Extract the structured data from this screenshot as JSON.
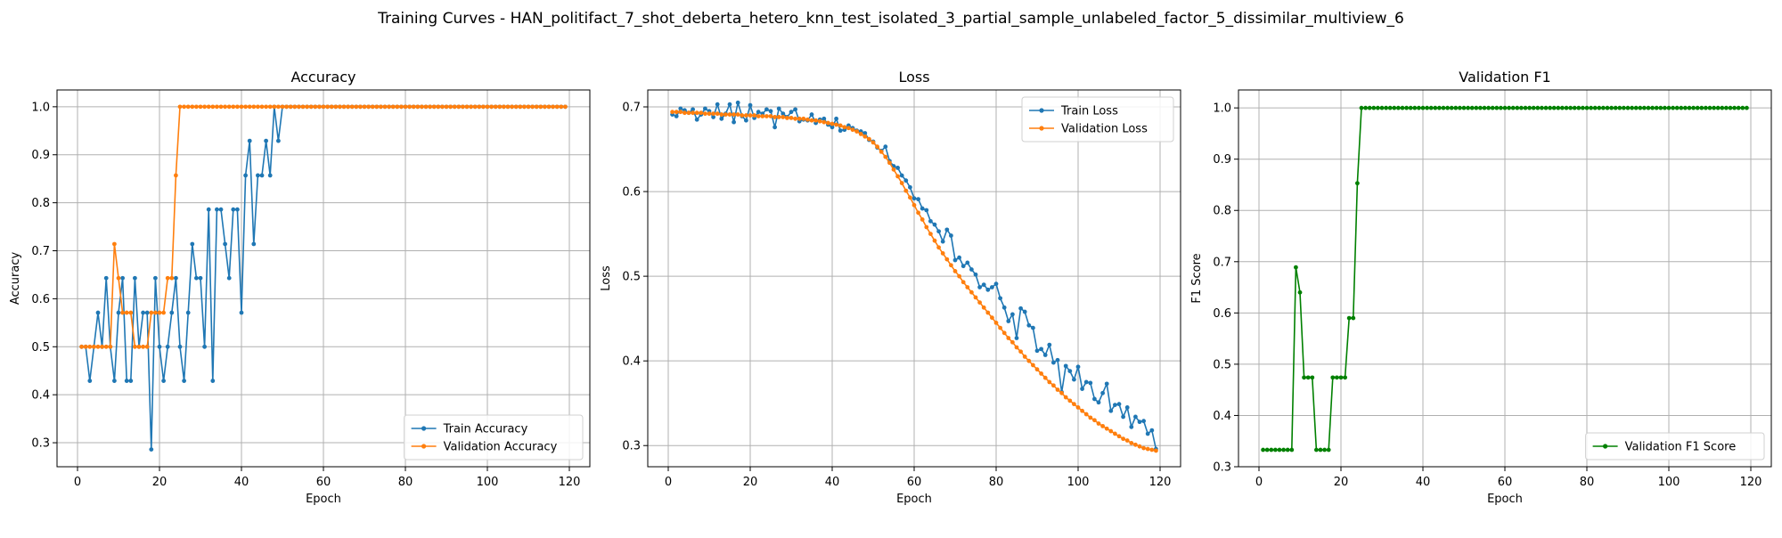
{
  "figure": {
    "title": "Training Curves - HAN_politifact_7_shot_deberta_hetero_knn_test_isolated_3_partial_sample_unlabeled_factor_5_dissimilar_multiview_6"
  },
  "colors": {
    "train": "#1f77b4",
    "validation": "#ff7f0e",
    "f1": "#008000"
  },
  "chart_data": [
    {
      "type": "line",
      "title": "Accuracy",
      "xlabel": "Epoch",
      "ylabel": "Accuracy",
      "xlim": [
        -5,
        125
      ],
      "ylim": [
        0.25,
        1.035
      ],
      "xticks": [
        "0",
        "20",
        "40",
        "60",
        "80",
        "100",
        "120"
      ],
      "yticks": [
        "0.3",
        "0.4",
        "0.5",
        "0.6",
        "0.7",
        "0.8",
        "0.9",
        "1.0"
      ],
      "grid": true,
      "legend": "lower-right",
      "series": [
        {
          "name": "Train Accuracy",
          "color": "#1f77b4",
          "values": [
            0.5,
            0.5,
            0.429,
            0.5,
            0.571,
            0.5,
            0.643,
            0.5,
            0.429,
            0.571,
            0.643,
            0.429,
            0.429,
            0.643,
            0.5,
            0.571,
            0.571,
            0.286,
            0.643,
            0.5,
            0.429,
            0.5,
            0.571,
            0.643,
            0.5,
            0.429,
            0.571,
            0.714,
            0.643,
            0.643,
            0.5,
            0.786,
            0.429,
            0.786,
            0.786,
            0.714,
            0.643,
            0.786,
            0.786,
            0.571,
            0.857,
            0.929,
            0.714,
            0.857,
            0.857,
            0.929,
            0.857,
            1.0,
            0.929,
            1.0,
            1.0,
            1.0,
            1.0,
            1.0,
            1.0,
            1.0,
            1.0,
            1.0,
            1.0,
            1.0,
            1.0,
            1.0,
            1.0,
            1.0,
            1.0,
            1.0,
            1.0,
            1.0,
            1.0,
            1.0,
            1.0,
            1.0,
            1.0,
            1.0,
            1.0,
            1.0,
            1.0,
            1.0,
            1.0,
            1.0,
            1.0,
            1.0,
            1.0,
            1.0,
            1.0,
            1.0,
            1.0,
            1.0,
            1.0,
            1.0,
            1.0,
            1.0,
            1.0,
            1.0,
            1.0,
            1.0,
            1.0,
            1.0,
            1.0,
            1.0,
            1.0,
            1.0,
            1.0,
            1.0,
            1.0,
            1.0,
            1.0,
            1.0,
            1.0,
            1.0,
            1.0,
            1.0,
            1.0,
            1.0,
            1.0,
            1.0,
            1.0,
            1.0,
            1.0
          ]
        },
        {
          "name": "Validation Accuracy",
          "color": "#ff7f0e",
          "values": [
            0.5,
            0.5,
            0.5,
            0.5,
            0.5,
            0.5,
            0.5,
            0.5,
            0.714,
            0.643,
            0.571,
            0.571,
            0.571,
            0.5,
            0.5,
            0.5,
            0.5,
            0.571,
            0.571,
            0.571,
            0.571,
            0.643,
            0.643,
            0.857,
            1.0,
            1.0,
            1.0,
            1.0,
            1.0,
            1.0,
            1.0,
            1.0,
            1.0,
            1.0,
            1.0,
            1.0,
            1.0,
            1.0,
            1.0,
            1.0,
            1.0,
            1.0,
            1.0,
            1.0,
            1.0,
            1.0,
            1.0,
            1.0,
            1.0,
            1.0,
            1.0,
            1.0,
            1.0,
            1.0,
            1.0,
            1.0,
            1.0,
            1.0,
            1.0,
            1.0,
            1.0,
            1.0,
            1.0,
            1.0,
            1.0,
            1.0,
            1.0,
            1.0,
            1.0,
            1.0,
            1.0,
            1.0,
            1.0,
            1.0,
            1.0,
            1.0,
            1.0,
            1.0,
            1.0,
            1.0,
            1.0,
            1.0,
            1.0,
            1.0,
            1.0,
            1.0,
            1.0,
            1.0,
            1.0,
            1.0,
            1.0,
            1.0,
            1.0,
            1.0,
            1.0,
            1.0,
            1.0,
            1.0,
            1.0,
            1.0,
            1.0,
            1.0,
            1.0,
            1.0,
            1.0,
            1.0,
            1.0,
            1.0,
            1.0,
            1.0,
            1.0,
            1.0,
            1.0,
            1.0,
            1.0,
            1.0,
            1.0,
            1.0,
            1.0
          ]
        }
      ]
    },
    {
      "type": "line",
      "title": "Loss",
      "xlabel": "Epoch",
      "ylabel": "Loss",
      "xlim": [
        -5,
        125
      ],
      "ylim": [
        0.275,
        0.72
      ],
      "xticks": [
        "0",
        "20",
        "40",
        "60",
        "80",
        "100",
        "120"
      ],
      "yticks": [
        "0.3",
        "0.4",
        "0.5",
        "0.6",
        "0.7"
      ],
      "grid": true,
      "legend": "upper-right",
      "series": [
        {
          "name": "Train Loss",
          "color": "#1f77b4",
          "values": [
            0.691,
            0.689,
            0.698,
            0.696,
            0.693,
            0.697,
            0.685,
            0.691,
            0.698,
            0.695,
            0.688,
            0.703,
            0.686,
            0.692,
            0.703,
            0.682,
            0.705,
            0.689,
            0.684,
            0.702,
            0.687,
            0.694,
            0.692,
            0.697,
            0.695,
            0.676,
            0.698,
            0.692,
            0.688,
            0.694,
            0.697,
            0.683,
            0.685,
            0.684,
            0.691,
            0.681,
            0.685,
            0.686,
            0.679,
            0.676,
            0.686,
            0.672,
            0.673,
            0.678,
            0.675,
            0.672,
            0.671,
            0.669,
            0.661,
            0.659,
            0.652,
            0.648,
            0.653,
            0.636,
            0.63,
            0.628,
            0.619,
            0.613,
            0.605,
            0.592,
            0.591,
            0.58,
            0.578,
            0.565,
            0.561,
            0.553,
            0.541,
            0.555,
            0.548,
            0.519,
            0.522,
            0.512,
            0.516,
            0.508,
            0.502,
            0.487,
            0.49,
            0.484,
            0.487,
            0.491,
            0.474,
            0.463,
            0.447,
            0.455,
            0.427,
            0.462,
            0.458,
            0.442,
            0.439,
            0.412,
            0.414,
            0.407,
            0.419,
            0.398,
            0.401,
            0.363,
            0.394,
            0.388,
            0.378,
            0.393,
            0.367,
            0.375,
            0.374,
            0.355,
            0.351,
            0.362,
            0.373,
            0.341,
            0.348,
            0.349,
            0.334,
            0.345,
            0.322,
            0.334,
            0.328,
            0.329,
            0.314,
            0.318,
            0.296
          ]
        },
        {
          "name": "Validation Loss",
          "color": "#ff7f0e",
          "values": [
            0.694,
            0.694,
            0.694,
            0.693,
            0.693,
            0.693,
            0.693,
            0.693,
            0.692,
            0.692,
            0.692,
            0.692,
            0.691,
            0.691,
            0.691,
            0.691,
            0.691,
            0.69,
            0.69,
            0.69,
            0.69,
            0.689,
            0.689,
            0.689,
            0.689,
            0.688,
            0.688,
            0.688,
            0.687,
            0.687,
            0.686,
            0.686,
            0.686,
            0.685,
            0.684,
            0.684,
            0.683,
            0.682,
            0.681,
            0.68,
            0.679,
            0.678,
            0.676,
            0.675,
            0.673,
            0.671,
            0.668,
            0.665,
            0.662,
            0.658,
            0.653,
            0.647,
            0.641,
            0.634,
            0.626,
            0.618,
            0.61,
            0.601,
            0.593,
            0.584,
            0.575,
            0.567,
            0.558,
            0.55,
            0.542,
            0.534,
            0.527,
            0.52,
            0.513,
            0.506,
            0.5,
            0.493,
            0.487,
            0.481,
            0.475,
            0.469,
            0.463,
            0.457,
            0.451,
            0.445,
            0.439,
            0.433,
            0.427,
            0.422,
            0.416,
            0.411,
            0.405,
            0.4,
            0.395,
            0.39,
            0.385,
            0.38,
            0.375,
            0.371,
            0.366,
            0.362,
            0.357,
            0.353,
            0.349,
            0.345,
            0.341,
            0.337,
            0.333,
            0.33,
            0.326,
            0.323,
            0.32,
            0.317,
            0.314,
            0.311,
            0.308,
            0.306,
            0.303,
            0.301,
            0.299,
            0.297,
            0.296,
            0.295,
            0.294
          ]
        }
      ]
    },
    {
      "type": "line",
      "title": "Validation F1",
      "xlabel": "Epoch",
      "ylabel": "F1 Score",
      "xlim": [
        -5,
        125
      ],
      "ylim": [
        0.3,
        1.035
      ],
      "xticks": [
        "0",
        "20",
        "40",
        "60",
        "80",
        "100",
        "120"
      ],
      "yticks": [
        "0.3",
        "0.4",
        "0.5",
        "0.6",
        "0.7",
        "0.8",
        "0.9",
        "1.0"
      ],
      "grid": true,
      "legend": "lower-right",
      "series": [
        {
          "name": "Validation F1 Score",
          "color": "#008000",
          "values": [
            0.333,
            0.333,
            0.333,
            0.333,
            0.333,
            0.333,
            0.333,
            0.333,
            0.689,
            0.64,
            0.474,
            0.474,
            0.474,
            0.333,
            0.333,
            0.333,
            0.333,
            0.474,
            0.474,
            0.474,
            0.474,
            0.59,
            0.59,
            0.853,
            1.0,
            1.0,
            1.0,
            1.0,
            1.0,
            1.0,
            1.0,
            1.0,
            1.0,
            1.0,
            1.0,
            1.0,
            1.0,
            1.0,
            1.0,
            1.0,
            1.0,
            1.0,
            1.0,
            1.0,
            1.0,
            1.0,
            1.0,
            1.0,
            1.0,
            1.0,
            1.0,
            1.0,
            1.0,
            1.0,
            1.0,
            1.0,
            1.0,
            1.0,
            1.0,
            1.0,
            1.0,
            1.0,
            1.0,
            1.0,
            1.0,
            1.0,
            1.0,
            1.0,
            1.0,
            1.0,
            1.0,
            1.0,
            1.0,
            1.0,
            1.0,
            1.0,
            1.0,
            1.0,
            1.0,
            1.0,
            1.0,
            1.0,
            1.0,
            1.0,
            1.0,
            1.0,
            1.0,
            1.0,
            1.0,
            1.0,
            1.0,
            1.0,
            1.0,
            1.0,
            1.0,
            1.0,
            1.0,
            1.0,
            1.0,
            1.0,
            1.0,
            1.0,
            1.0,
            1.0,
            1.0,
            1.0,
            1.0,
            1.0,
            1.0,
            1.0,
            1.0,
            1.0,
            1.0,
            1.0,
            1.0,
            1.0,
            1.0,
            1.0,
            1.0
          ]
        }
      ]
    }
  ]
}
